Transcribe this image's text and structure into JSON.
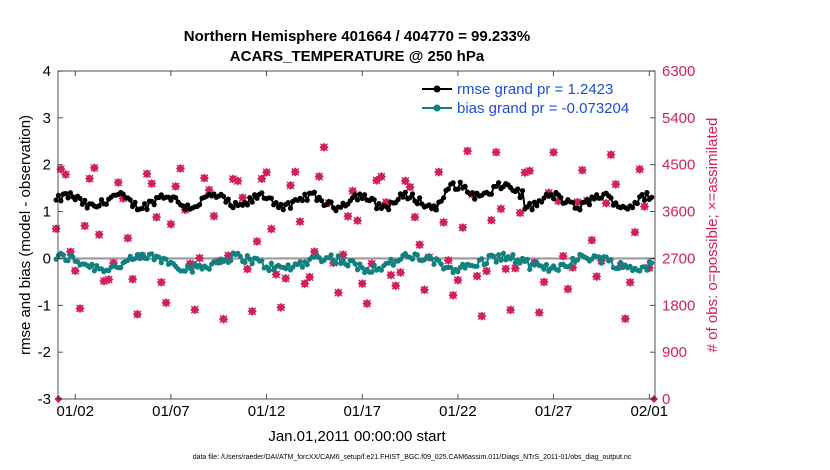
{
  "chart_data": {
    "type": "line",
    "title": "Northern Hemisphere 401664 / 404770 = 99.233%",
    "subtitle": "ACARS_TEMPERATURE @ 250 hPa",
    "xlabel": "Jan.01,2011 00:00:00 start",
    "ylabel_left": "rmse and bias (model - observation)",
    "ylabel_right": "# of obs: o=possible; ×=assimilated",
    "footnote": "data file: /Users/raeder/DAI/ATM_forcXX/CAM6_setup/f.e21.FHIST_BGC.f09_025.CAM6assim.011/Diags_NTrS_2011-01/obs_diag_output.nc",
    "xlim": [
      0.6,
      31.8
    ],
    "ylim_left": [
      -3,
      4
    ],
    "ylim_right": [
      0,
      6300
    ],
    "x_ticks": [
      1.5,
      6.5,
      11.5,
      16.5,
      21.5,
      26.5,
      31.5
    ],
    "x_tick_labels": [
      "01/02",
      "01/07",
      "01/12",
      "01/17",
      "01/22",
      "01/27",
      "02/01"
    ],
    "y_ticks_left": [
      -3,
      -2,
      -1,
      0,
      1,
      2,
      3,
      4
    ],
    "y_tick_labels_left": [
      "-3",
      "-2",
      "-1",
      "0",
      "1",
      "2",
      "3",
      "4"
    ],
    "y_ticks_right": [
      0,
      900,
      1800,
      2700,
      3600,
      4500,
      5400,
      6300
    ],
    "y_tick_labels_right": [
      "0",
      "900",
      "1800",
      "2700",
      "3600",
      "4500",
      "5400",
      "6300"
    ],
    "zero_line": 0,
    "series": [
      {
        "name": "rmse",
        "legend": "rmse grand pr = 1.2423",
        "color": "#000000",
        "axis": "left"
      },
      {
        "name": "bias",
        "legend": "bias grand pr = -0.073204",
        "color": "#118080",
        "axis": "left"
      },
      {
        "name": "obs_count",
        "legend": "",
        "color": "#d1205f",
        "axis": "right"
      }
    ],
    "generator": {
      "start": 0.5,
      "step": 0.125,
      "count": 250,
      "rmse_mean": 1.22,
      "rmse_amp": 0.12,
      "bias_mean": -0.09,
      "bias_amp": 0.12,
      "obs_mean": 3150,
      "obs_amp": 1250
    },
    "obs_endpoints": {
      "x": [
        0.62,
        31.75
      ],
      "y": [
        0,
        0
      ]
    }
  }
}
